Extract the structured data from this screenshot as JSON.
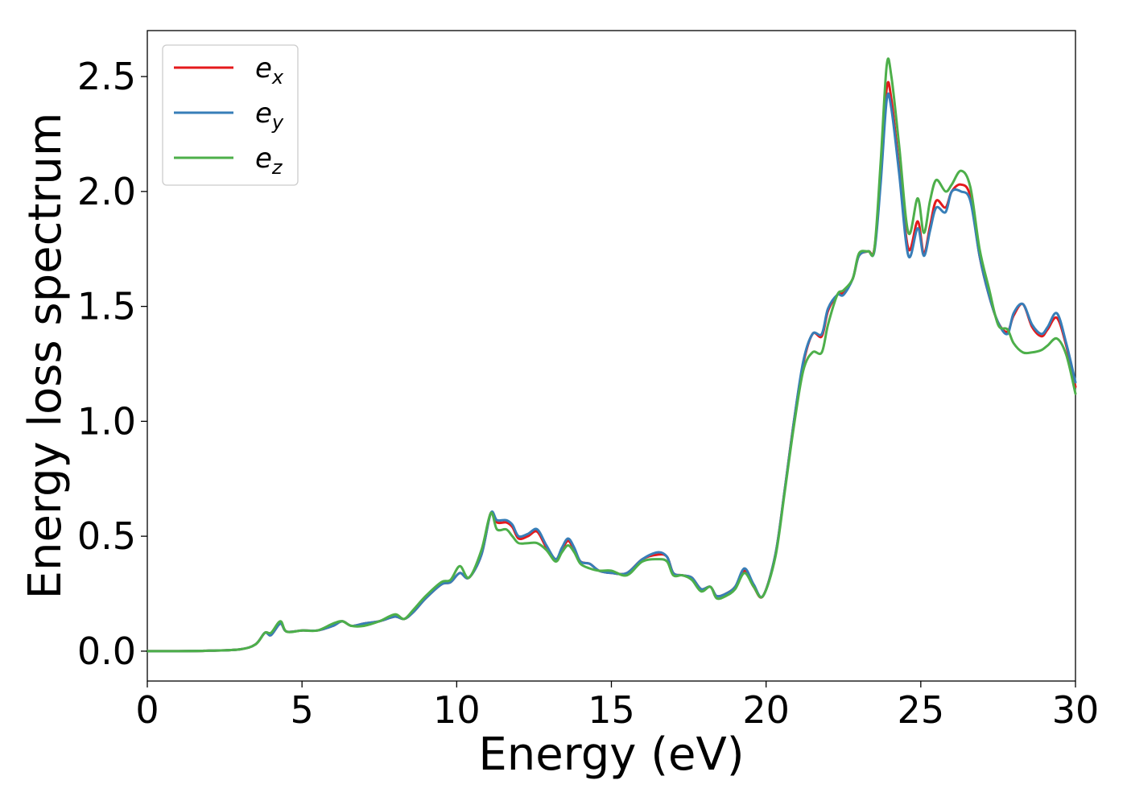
{
  "chart_data": {
    "type": "line",
    "xlabel": "Energy (eV)",
    "ylabel": "Energy loss spectrum",
    "xlim": [
      0,
      30
    ],
    "ylim": [
      -0.13,
      2.7
    ],
    "xticks": [
      "0",
      "5",
      "10",
      "15",
      "20",
      "25",
      "30"
    ],
    "yticks": [
      "0.0",
      "0.5",
      "1.0",
      "1.5",
      "2.0",
      "2.5"
    ],
    "grid": false,
    "legend_position": "top-left",
    "series": [
      {
        "name": "ex",
        "base": "e",
        "sub": "x",
        "color": "#e41a1c",
        "x": [
          0,
          1,
          2,
          3,
          3.5,
          3.8,
          4.0,
          4.3,
          4.5,
          5.0,
          5.5,
          6.0,
          6.3,
          6.6,
          7.0,
          7.5,
          8.0,
          8.3,
          8.6,
          9.0,
          9.5,
          9.8,
          10.1,
          10.4,
          10.8,
          11.1,
          11.3,
          11.6,
          11.8,
          12.0,
          12.3,
          12.6,
          12.9,
          13.2,
          13.4,
          13.6,
          13.8,
          14.0,
          14.3,
          14.6,
          15.0,
          15.5,
          16.0,
          16.5,
          16.8,
          17.0,
          17.3,
          17.6,
          17.9,
          18.2,
          18.4,
          18.7,
          19.0,
          19.3,
          19.6,
          19.9,
          20.3,
          20.6,
          20.9,
          21.2,
          21.5,
          21.8,
          22.0,
          22.3,
          22.5,
          22.8,
          23.0,
          23.3,
          23.5,
          23.7,
          23.9,
          24.05,
          24.3,
          24.6,
          24.9,
          25.1,
          25.3,
          25.5,
          25.8,
          26.0,
          26.3,
          26.6,
          26.9,
          27.2,
          27.5,
          27.8,
          28.0,
          28.3,
          28.6,
          28.9,
          29.1,
          29.4,
          29.7,
          30.0
        ],
        "y": [
          0,
          0,
          0.002,
          0.008,
          0.03,
          0.08,
          0.07,
          0.12,
          0.085,
          0.09,
          0.09,
          0.11,
          0.13,
          0.11,
          0.12,
          0.13,
          0.15,
          0.14,
          0.17,
          0.23,
          0.29,
          0.3,
          0.34,
          0.32,
          0.42,
          0.6,
          0.56,
          0.56,
          0.54,
          0.49,
          0.5,
          0.52,
          0.45,
          0.4,
          0.44,
          0.48,
          0.44,
          0.39,
          0.38,
          0.35,
          0.34,
          0.34,
          0.4,
          0.42,
          0.41,
          0.34,
          0.33,
          0.32,
          0.27,
          0.28,
          0.24,
          0.25,
          0.28,
          0.35,
          0.28,
          0.24,
          0.42,
          0.7,
          1.0,
          1.25,
          1.38,
          1.37,
          1.48,
          1.55,
          1.56,
          1.62,
          1.72,
          1.74,
          1.75,
          2.05,
          2.45,
          2.4,
          2.1,
          1.75,
          1.87,
          1.73,
          1.85,
          1.96,
          1.93,
          2.0,
          2.03,
          1.98,
          1.72,
          1.55,
          1.43,
          1.39,
          1.46,
          1.51,
          1.41,
          1.37,
          1.4,
          1.45,
          1.33,
          1.15
        ]
      },
      {
        "name": "ey",
        "base": "e",
        "sub": "y",
        "color": "#377eb8",
        "x": [
          0,
          1,
          2,
          3,
          3.5,
          3.8,
          4.0,
          4.3,
          4.5,
          5.0,
          5.5,
          6.0,
          6.3,
          6.6,
          7.0,
          7.5,
          8.0,
          8.3,
          8.6,
          9.0,
          9.5,
          9.8,
          10.1,
          10.4,
          10.8,
          11.1,
          11.3,
          11.6,
          11.8,
          12.0,
          12.3,
          12.6,
          12.9,
          13.2,
          13.4,
          13.6,
          13.8,
          14.0,
          14.3,
          14.6,
          15.0,
          15.5,
          16.0,
          16.5,
          16.8,
          17.0,
          17.3,
          17.6,
          17.9,
          18.2,
          18.4,
          18.7,
          19.0,
          19.3,
          19.6,
          19.9,
          20.3,
          20.6,
          20.9,
          21.2,
          21.5,
          21.8,
          22.0,
          22.3,
          22.5,
          22.8,
          23.0,
          23.3,
          23.5,
          23.7,
          23.9,
          24.05,
          24.3,
          24.6,
          24.9,
          25.1,
          25.3,
          25.5,
          25.8,
          26.0,
          26.3,
          26.6,
          26.9,
          27.2,
          27.5,
          27.8,
          28.0,
          28.3,
          28.6,
          28.9,
          29.1,
          29.4,
          29.7,
          30.0
        ],
        "y": [
          0,
          0,
          0.002,
          0.008,
          0.03,
          0.08,
          0.07,
          0.12,
          0.085,
          0.09,
          0.09,
          0.11,
          0.13,
          0.11,
          0.12,
          0.13,
          0.15,
          0.14,
          0.17,
          0.23,
          0.29,
          0.3,
          0.34,
          0.32,
          0.42,
          0.6,
          0.57,
          0.57,
          0.55,
          0.5,
          0.51,
          0.53,
          0.46,
          0.4,
          0.45,
          0.49,
          0.45,
          0.39,
          0.38,
          0.35,
          0.34,
          0.34,
          0.4,
          0.43,
          0.41,
          0.34,
          0.33,
          0.32,
          0.27,
          0.28,
          0.24,
          0.25,
          0.28,
          0.36,
          0.29,
          0.24,
          0.42,
          0.7,
          1.0,
          1.26,
          1.38,
          1.38,
          1.49,
          1.55,
          1.55,
          1.62,
          1.72,
          1.74,
          1.74,
          2.03,
          2.4,
          2.36,
          2.08,
          1.72,
          1.84,
          1.72,
          1.83,
          1.93,
          1.91,
          2.0,
          2.0,
          1.96,
          1.72,
          1.55,
          1.43,
          1.38,
          1.47,
          1.51,
          1.42,
          1.38,
          1.41,
          1.47,
          1.34,
          1.17
        ]
      },
      {
        "name": "ez",
        "base": "e",
        "sub": "z",
        "color": "#4daf4a",
        "x": [
          0,
          1,
          2,
          3,
          3.5,
          3.8,
          4.0,
          4.3,
          4.5,
          5.0,
          5.5,
          6.0,
          6.3,
          6.6,
          7.0,
          7.5,
          8.0,
          8.3,
          8.6,
          9.0,
          9.5,
          9.8,
          10.1,
          10.4,
          10.8,
          11.1,
          11.3,
          11.6,
          11.8,
          12.0,
          12.3,
          12.6,
          12.9,
          13.2,
          13.4,
          13.6,
          13.8,
          14.0,
          14.3,
          14.6,
          15.0,
          15.5,
          16.0,
          16.5,
          16.8,
          17.0,
          17.3,
          17.6,
          17.9,
          18.2,
          18.4,
          18.7,
          19.0,
          19.3,
          19.6,
          19.9,
          20.3,
          20.6,
          20.9,
          21.2,
          21.5,
          21.8,
          22.0,
          22.3,
          22.5,
          22.8,
          23.0,
          23.3,
          23.5,
          23.7,
          23.9,
          24.05,
          24.3,
          24.6,
          24.9,
          25.1,
          25.3,
          25.5,
          25.8,
          26.0,
          26.3,
          26.6,
          26.9,
          27.2,
          27.5,
          27.8,
          28.0,
          28.3,
          28.6,
          28.9,
          29.1,
          29.4,
          29.7,
          30.0
        ],
        "y": [
          0,
          0,
          0.002,
          0.008,
          0.03,
          0.08,
          0.08,
          0.13,
          0.085,
          0.09,
          0.09,
          0.12,
          0.13,
          0.11,
          0.11,
          0.13,
          0.16,
          0.14,
          0.18,
          0.24,
          0.3,
          0.31,
          0.37,
          0.32,
          0.44,
          0.6,
          0.53,
          0.53,
          0.5,
          0.47,
          0.47,
          0.47,
          0.44,
          0.39,
          0.43,
          0.46,
          0.43,
          0.38,
          0.36,
          0.35,
          0.35,
          0.33,
          0.39,
          0.4,
          0.39,
          0.33,
          0.33,
          0.31,
          0.26,
          0.28,
          0.23,
          0.24,
          0.27,
          0.34,
          0.28,
          0.24,
          0.41,
          0.69,
          0.98,
          1.22,
          1.3,
          1.3,
          1.42,
          1.55,
          1.57,
          1.62,
          1.73,
          1.74,
          1.75,
          2.12,
          2.55,
          2.5,
          2.2,
          1.82,
          1.97,
          1.82,
          1.96,
          2.05,
          2.0,
          2.03,
          2.09,
          2.02,
          1.75,
          1.58,
          1.42,
          1.4,
          1.34,
          1.3,
          1.3,
          1.31,
          1.33,
          1.36,
          1.29,
          1.12
        ]
      }
    ]
  }
}
